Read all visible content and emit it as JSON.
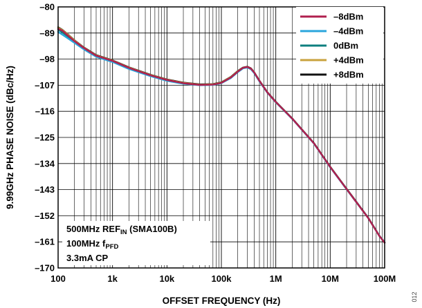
{
  "chart_data": {
    "type": "line",
    "xlabel": "OFFSET FREQUENCY (Hz)",
    "ylabel": "9.99GHz PHASE NOISE (dBc/Hz)",
    "x_scale": "log",
    "xlim": [
      100,
      100000000
    ],
    "ylim": [
      -170,
      -80
    ],
    "x_ticks": [
      {
        "value": 100,
        "label": "100"
      },
      {
        "value": 1000,
        "label": "1k"
      },
      {
        "value": 10000,
        "label": "10k"
      },
      {
        "value": 100000,
        "label": "100k"
      },
      {
        "value": 1000000,
        "label": "1M"
      },
      {
        "value": 10000000,
        "label": "10M"
      },
      {
        "value": 100000000,
        "label": "100M"
      }
    ],
    "y_ticks": [
      {
        "value": -80,
        "label": "–80"
      },
      {
        "value": -89,
        "label": "–89"
      },
      {
        "value": -98,
        "label": "–98"
      },
      {
        "value": -107,
        "label": "–107"
      },
      {
        "value": -116,
        "label": "–116"
      },
      {
        "value": -125,
        "label": "–125"
      },
      {
        "value": -134,
        "label": "–134"
      },
      {
        "value": -143,
        "label": "–143"
      },
      {
        "value": -152,
        "label": "–152"
      },
      {
        "value": -161,
        "label": "–161"
      },
      {
        "value": -170,
        "label": "–170"
      }
    ],
    "grid": true,
    "legend_position": "top-right",
    "x": [
      100,
      120,
      150,
      200,
      300,
      500,
      1000,
      2000,
      5000,
      10000,
      20000,
      40000,
      70000,
      100000,
      150000,
      200000,
      250000,
      300000,
      350000,
      400000,
      500000,
      700000,
      1000000,
      2000000,
      5000000,
      10000000,
      20000000,
      50000000,
      80000000,
      100000000
    ],
    "series": [
      {
        "name": "–8dBm",
        "color": "#b01f4e",
        "values": [
          -87.5,
          -88.2,
          -89.8,
          -91.8,
          -94.2,
          -96.8,
          -98.6,
          -101.0,
          -103.6,
          -105.2,
          -106.3,
          -106.9,
          -106.8,
          -106.2,
          -104.3,
          -102.3,
          -101.0,
          -100.7,
          -101.3,
          -102.6,
          -105.5,
          -109.5,
          -112.8,
          -118.5,
          -127.0,
          -135.2,
          -142.8,
          -152.8,
          -159.0,
          -161.3
        ]
      },
      {
        "name": "–4dBm",
        "color": "#2aa5dc",
        "values": [
          -88.6,
          -89.6,
          -90.8,
          -92.4,
          -94.7,
          -97.2,
          -99.0,
          -101.4,
          -103.9,
          -105.5,
          -106.5,
          -107.0,
          -106.9,
          -106.3,
          -104.5,
          -102.5,
          -101.2,
          -100.9,
          -101.5,
          -102.8,
          -105.7,
          -109.6,
          -112.9,
          -118.6,
          -127.1,
          -135.3,
          -142.9,
          -152.8,
          -159.0,
          -161.2
        ]
      },
      {
        "name": "0dBm",
        "color": "#0d7f7f",
        "values": [
          -87.8,
          -88.8,
          -90.2,
          -92.0,
          -94.4,
          -97.0,
          -98.8,
          -101.2,
          -103.7,
          -105.3,
          -106.4,
          -106.9,
          -106.8,
          -106.2,
          -104.4,
          -102.4,
          -101.1,
          -100.8,
          -101.4,
          -102.7,
          -105.6,
          -109.5,
          -112.8,
          -118.5,
          -127.0,
          -135.2,
          -142.8,
          -152.8,
          -159.0,
          -161.3
        ]
      },
      {
        "name": "+4dBm",
        "color": "#c9a23c",
        "values": [
          -87.2,
          -88.0,
          -89.5,
          -91.6,
          -94.1,
          -96.7,
          -98.5,
          -100.9,
          -103.5,
          -105.1,
          -106.2,
          -106.8,
          -106.7,
          -106.1,
          -104.2,
          -102.2,
          -101.0,
          -100.7,
          -101.3,
          -102.6,
          -105.5,
          -109.5,
          -112.8,
          -118.5,
          -127.0,
          -135.2,
          -142.8,
          -152.8,
          -159.0,
          -161.3
        ]
      },
      {
        "name": "+8dBm",
        "color": "#111111",
        "values": [
          -87.0,
          -87.9,
          -89.4,
          -91.5,
          -94.0,
          -96.6,
          -98.4,
          -100.8,
          -103.4,
          -105.0,
          -106.1,
          -106.7,
          -106.6,
          -106.0,
          -104.1,
          -102.1,
          -100.9,
          -100.6,
          -101.2,
          -102.5,
          -105.4,
          -109.4,
          -112.7,
          -118.4,
          -126.9,
          -135.1,
          -142.7,
          -152.7,
          -158.9,
          -161.2
        ]
      }
    ],
    "draw_order": [
      4,
      3,
      2,
      1,
      0
    ],
    "annotations": [
      {
        "line": 1,
        "parts": [
          {
            "text": "500MHz REF"
          },
          {
            "text": "IN",
            "sub": true
          },
          {
            "text": " (SMA100B)"
          }
        ]
      },
      {
        "line": 2,
        "parts": [
          {
            "text": "100MHz f"
          },
          {
            "text": "PFD",
            "sub": true
          }
        ]
      },
      {
        "line": 3,
        "parts": [
          {
            "text": "3.3mA CP"
          }
        ]
      }
    ],
    "figure_code": "012"
  }
}
